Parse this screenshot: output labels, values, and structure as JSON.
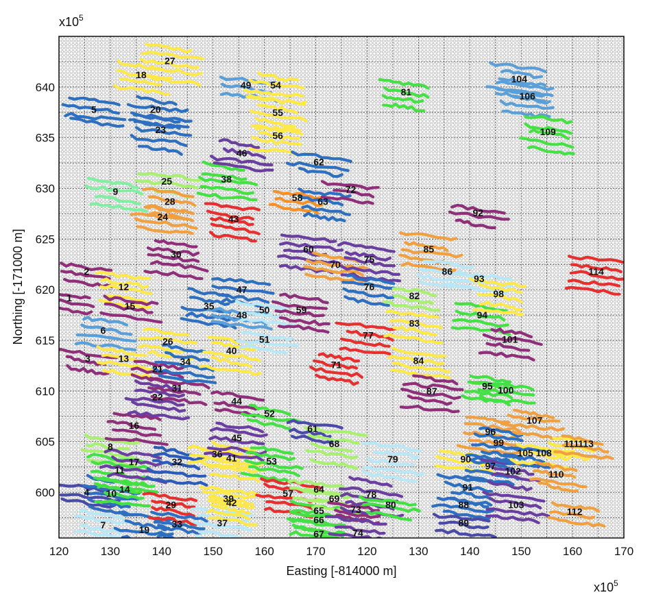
{
  "chart_data": {
    "type": "scatter",
    "xlabel": "Easting [-814000 m]",
    "ylabel": "Northing [-171000 m]",
    "x_multiplier": "x10",
    "x_exponent": "5",
    "y_multiplier": "x10",
    "y_exponent": "5",
    "x_tick_labels": [
      "120",
      "130",
      "140",
      "150",
      "160",
      "170",
      "120",
      "130",
      "140",
      "150",
      "160",
      "170"
    ],
    "y_tick_labels": [
      "600",
      "605",
      "610",
      "615",
      "620",
      "625",
      "630",
      "635",
      "640"
    ],
    "y_ticks": [
      600,
      605,
      610,
      615,
      620,
      625,
      630,
      635,
      640
    ],
    "ylim": [
      595.5,
      645
    ],
    "grid": true,
    "background_dot_color": "#a0a0a0",
    "palette": [
      "#2e6fc0",
      "#8f2f7a",
      "#f0a040",
      "#5a9fd8",
      "#ffe84a",
      "#6b3fa0",
      "#e63030",
      "#44e044",
      "#b8e8f8",
      "#a8f070",
      "#4a4aa8",
      "#f5902a",
      "#2a5cb8",
      "#a04080"
    ],
    "regions": [
      {
        "id": "1",
        "x": 1.0,
        "y": 619.2,
        "color": "#8f2f7a"
      },
      {
        "id": "2",
        "x": 2.7,
        "y": 621.8,
        "color": "#8f2f7a"
      },
      {
        "id": "3",
        "x": 2.8,
        "y": 613.2,
        "color": "#8f2f7a"
      },
      {
        "id": "4",
        "x": 2.7,
        "y": 600.0,
        "color": "#4a4aa8"
      },
      {
        "id": "5",
        "x": 3.4,
        "y": 637.8,
        "color": "#2e6fc0"
      },
      {
        "id": "6",
        "x": 4.3,
        "y": 616.0,
        "color": "#5a9fd8"
      },
      {
        "id": "7",
        "x": 4.3,
        "y": 596.8,
        "color": "#b8e8f8"
      },
      {
        "id": "8",
        "x": 5.0,
        "y": 604.5,
        "color": "#a8f070"
      },
      {
        "id": "9",
        "x": 5.5,
        "y": 629.7,
        "color": "#7ef0a0"
      },
      {
        "id": "10",
        "x": 5.1,
        "y": 599.9,
        "color": "#2e6fc0"
      },
      {
        "id": "11",
        "x": 5.9,
        "y": 602.2,
        "color": "#44e044"
      },
      {
        "id": "12",
        "x": 6.3,
        "y": 620.3,
        "color": "#ffe84a"
      },
      {
        "id": "13",
        "x": 6.3,
        "y": 613.2,
        "color": "#ffe84a"
      },
      {
        "id": "14",
        "x": 6.4,
        "y": 600.3,
        "color": "#44e044"
      },
      {
        "id": "15",
        "x": 6.9,
        "y": 618.4,
        "color": "#8f2f7a"
      },
      {
        "id": "16",
        "x": 7.3,
        "y": 606.6,
        "color": "#8f2f7a"
      },
      {
        "id": "17",
        "x": 7.3,
        "y": 603.0,
        "color": "#6b3fa0"
      },
      {
        "id": "18",
        "x": 8.0,
        "y": 641.2,
        "color": "#ffe84a"
      },
      {
        "id": "19",
        "x": 8.3,
        "y": 596.3,
        "color": "#2e6fc0"
      },
      {
        "id": "20",
        "x": 9.4,
        "y": 637.8,
        "color": "#2e6fc0"
      },
      {
        "id": "21",
        "x": 9.6,
        "y": 612.2,
        "color": "#8f2f7a"
      },
      {
        "id": "22",
        "x": 9.6,
        "y": 609.4,
        "color": "#6b3fa0"
      },
      {
        "id": "23",
        "x": 9.9,
        "y": 635.8,
        "color": "#2e6fc0"
      },
      {
        "id": "24",
        "x": 10.1,
        "y": 627.2,
        "color": "#f0a040"
      },
      {
        "id": "25",
        "x": 10.5,
        "y": 630.7,
        "color": "#a8f070"
      },
      {
        "id": "26",
        "x": 10.6,
        "y": 614.9,
        "color": "#ffe84a"
      },
      {
        "id": "27",
        "x": 10.8,
        "y": 642.6,
        "color": "#ffe84a"
      },
      {
        "id": "28",
        "x": 10.8,
        "y": 628.7,
        "color": "#f0a040"
      },
      {
        "id": "29",
        "x": 10.9,
        "y": 598.8,
        "color": "#e63030"
      },
      {
        "id": "30",
        "x": 11.4,
        "y": 623.5,
        "color": "#8f2f7a"
      },
      {
        "id": "31",
        "x": 11.5,
        "y": 610.3,
        "color": "#8f2f7a"
      },
      {
        "id": "32",
        "x": 11.5,
        "y": 603.0,
        "color": "#2a5cb8"
      },
      {
        "id": "33",
        "x": 11.5,
        "y": 596.9,
        "color": "#2e6fc0"
      },
      {
        "id": "34",
        "x": 12.3,
        "y": 612.9,
        "color": "#2e6fc0"
      },
      {
        "id": "35",
        "x": 14.6,
        "y": 618.4,
        "color": "#2e6fc0"
      },
      {
        "id": "36",
        "x": 15.4,
        "y": 603.8,
        "color": "#ffe84a"
      },
      {
        "id": "37",
        "x": 15.9,
        "y": 597.0,
        "color": "#b8e8f8"
      },
      {
        "id": "38",
        "x": 16.3,
        "y": 630.9,
        "color": "#44e044"
      },
      {
        "id": "39",
        "x": 16.5,
        "y": 599.4,
        "color": "#ffe84a"
      },
      {
        "id": "40",
        "x": 16.8,
        "y": 614.0,
        "color": "#ffe84a"
      },
      {
        "id": "41",
        "x": 16.8,
        "y": 603.4,
        "color": "#ffe84a"
      },
      {
        "id": "42",
        "x": 16.8,
        "y": 599.0,
        "color": "#ffe84a"
      },
      {
        "id": "43",
        "x": 17.0,
        "y": 627.0,
        "color": "#e63030"
      },
      {
        "id": "44",
        "x": 17.3,
        "y": 609.0,
        "color": "#8f2f7a"
      },
      {
        "id": "45",
        "x": 17.3,
        "y": 605.4,
        "color": "#6b3fa0"
      },
      {
        "id": "46",
        "x": 17.8,
        "y": 633.5,
        "color": "#6b3fa0"
      },
      {
        "id": "47",
        "x": 17.8,
        "y": 620.0,
        "color": "#2e6fc0"
      },
      {
        "id": "48",
        "x": 17.8,
        "y": 617.5,
        "color": "#5a9fd8"
      },
      {
        "id": "49",
        "x": 18.2,
        "y": 640.2,
        "color": "#5a9fd8"
      },
      {
        "id": "50",
        "x": 20.0,
        "y": 618.0,
        "color": "#b8e8f8"
      },
      {
        "id": "51",
        "x": 20.0,
        "y": 615.1,
        "color": "#b8e8f8"
      },
      {
        "id": "52",
        "x": 20.5,
        "y": 607.8,
        "color": "#44e044"
      },
      {
        "id": "53",
        "x": 20.7,
        "y": 603.1,
        "color": "#44e044"
      },
      {
        "id": "54",
        "x": 21.1,
        "y": 640.2,
        "color": "#ffe84a"
      },
      {
        "id": "55",
        "x": 21.3,
        "y": 637.5,
        "color": "#ffe84a"
      },
      {
        "id": "56",
        "x": 21.3,
        "y": 635.2,
        "color": "#ffe84a"
      },
      {
        "id": "57",
        "x": 22.3,
        "y": 599.9,
        "color": "#e63030"
      },
      {
        "id": "58",
        "x": 23.2,
        "y": 629.1,
        "color": "#f5902a"
      },
      {
        "id": "59",
        "x": 23.6,
        "y": 618.0,
        "color": "#8f2f7a"
      },
      {
        "id": "60",
        "x": 24.3,
        "y": 624.0,
        "color": "#6b3fa0"
      },
      {
        "id": "61",
        "x": 24.7,
        "y": 606.3,
        "color": "#4a4aa8"
      },
      {
        "id": "62",
        "x": 25.3,
        "y": 632.6,
        "color": "#2e6fc0"
      },
      {
        "id": "63",
        "x": 25.7,
        "y": 628.7,
        "color": "#2e6fc0"
      },
      {
        "id": "64",
        "x": 25.3,
        "y": 600.3,
        "color": "#a8f070"
      },
      {
        "id": "65",
        "x": 25.3,
        "y": 598.2,
        "color": "#44e044"
      },
      {
        "id": "66",
        "x": 25.3,
        "y": 597.3,
        "color": "#44e044"
      },
      {
        "id": "67",
        "x": 25.3,
        "y": 595.9,
        "color": "#44e044"
      },
      {
        "id": "68",
        "x": 26.8,
        "y": 604.8,
        "color": "#a8f070"
      },
      {
        "id": "69",
        "x": 26.8,
        "y": 599.4,
        "color": "#a8f070"
      },
      {
        "id": "70",
        "x": 26.9,
        "y": 622.5,
        "color": "#f0a040"
      },
      {
        "id": "71",
        "x": 27.0,
        "y": 612.6,
        "color": "#e63030"
      },
      {
        "id": "72",
        "x": 28.4,
        "y": 629.9,
        "color": "#8f2f7a"
      },
      {
        "id": "73",
        "x": 28.9,
        "y": 598.3,
        "color": "#8f2f7a"
      },
      {
        "id": "74",
        "x": 29.1,
        "y": 596.0,
        "color": "#6b3fa0"
      },
      {
        "id": "75",
        "x": 30.2,
        "y": 623.0,
        "color": "#6b3fa0"
      },
      {
        "id": "76",
        "x": 30.2,
        "y": 620.3,
        "color": "#2e6fc0"
      },
      {
        "id": "77",
        "x": 30.1,
        "y": 615.5,
        "color": "#e63030"
      },
      {
        "id": "78",
        "x": 30.4,
        "y": 599.8,
        "color": "#6b3fa0"
      },
      {
        "id": "79",
        "x": 32.5,
        "y": 603.3,
        "color": "#b8e8f8"
      },
      {
        "id": "80",
        "x": 32.3,
        "y": 598.8,
        "color": "#44e044"
      },
      {
        "id": "81",
        "x": 33.8,
        "y": 639.5,
        "color": "#44e044"
      },
      {
        "id": "82",
        "x": 34.6,
        "y": 619.4,
        "color": "#a8f070"
      },
      {
        "id": "83",
        "x": 34.6,
        "y": 616.7,
        "color": "#ffe84a"
      },
      {
        "id": "84",
        "x": 35.0,
        "y": 613.0,
        "color": "#ffe84a"
      },
      {
        "id": "85",
        "x": 36.0,
        "y": 624.0,
        "color": "#f0a040"
      },
      {
        "id": "86",
        "x": 37.8,
        "y": 621.8,
        "color": "#b8e8f8"
      },
      {
        "id": "87",
        "x": 36.3,
        "y": 610.0,
        "color": "#8f2f7a"
      },
      {
        "id": "88",
        "x": 39.4,
        "y": 598.8,
        "color": "#2e6fc0"
      },
      {
        "id": "89",
        "x": 39.4,
        "y": 597.0,
        "color": "#4a4aa8"
      },
      {
        "id": "90",
        "x": 39.6,
        "y": 603.3,
        "color": "#ffe84a"
      },
      {
        "id": "91",
        "x": 39.8,
        "y": 600.5,
        "color": "#2e6fc0"
      },
      {
        "id": "92",
        "x": 40.8,
        "y": 627.6,
        "color": "#8f2f7a"
      },
      {
        "id": "93",
        "x": 40.9,
        "y": 621.1,
        "color": "#b8e8f8"
      },
      {
        "id": "94",
        "x": 41.2,
        "y": 617.5,
        "color": "#44e044"
      },
      {
        "id": "95",
        "x": 41.7,
        "y": 610.5,
        "color": "#44e044"
      },
      {
        "id": "96",
        "x": 42.0,
        "y": 606.0,
        "color": "#f0a040"
      },
      {
        "id": "97",
        "x": 42.0,
        "y": 602.6,
        "color": "#2e6fc0"
      },
      {
        "id": "98",
        "x": 42.8,
        "y": 619.6,
        "color": "#ffe84a"
      },
      {
        "id": "99",
        "x": 42.8,
        "y": 604.9,
        "color": "#2e6fc0"
      },
      {
        "id": "100",
        "x": 43.5,
        "y": 610.1,
        "color": "#44e044"
      },
      {
        "id": "101",
        "x": 43.9,
        "y": 615.1,
        "color": "#8f2f7a"
      },
      {
        "id": "102",
        "x": 44.2,
        "y": 602.1,
        "color": "#6b3fa0"
      },
      {
        "id": "103",
        "x": 44.5,
        "y": 598.8,
        "color": "#6b3fa0"
      },
      {
        "id": "104",
        "x": 44.8,
        "y": 640.8,
        "color": "#5a9fd8"
      },
      {
        "id": "105",
        "x": 45.4,
        "y": 603.9,
        "color": "#2e6fc0"
      },
      {
        "id": "106",
        "x": 45.6,
        "y": 639.1,
        "color": "#5a9fd8"
      },
      {
        "id": "107",
        "x": 46.3,
        "y": 607.1,
        "color": "#f0a040"
      },
      {
        "id": "108",
        "x": 47.2,
        "y": 603.9,
        "color": "#ffe84a"
      },
      {
        "id": "109",
        "x": 47.6,
        "y": 635.6,
        "color": "#44e044"
      },
      {
        "id": "110",
        "x": 48.4,
        "y": 601.8,
        "color": "#f0a040"
      },
      {
        "id": "111",
        "x": 49.9,
        "y": 604.8,
        "color": "#ffe84a"
      },
      {
        "id": "112",
        "x": 50.2,
        "y": 598.1,
        "color": "#f0a040"
      },
      {
        "id": "113",
        "x": 51.3,
        "y": 604.8,
        "color": "#f0a040"
      },
      {
        "id": "114",
        "x": 52.3,
        "y": 621.8,
        "color": "#e63030"
      }
    ]
  }
}
